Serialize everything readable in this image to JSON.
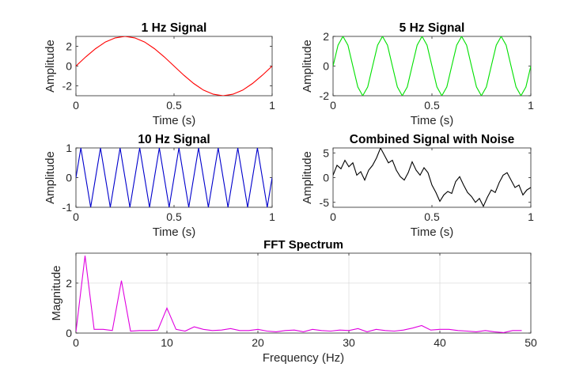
{
  "chart_data": [
    {
      "id": "p1",
      "type": "line",
      "title": "1 Hz Signal",
      "xlabel": "Time (s)",
      "ylabel": "Amplitude",
      "xlim": [
        0,
        1
      ],
      "ylim": [
        -3,
        3
      ],
      "xticks": [
        0,
        0.5,
        1
      ],
      "xtick_labels": [
        "0",
        "0.5",
        "1"
      ],
      "yticks": [
        -2,
        0,
        2
      ],
      "ytick_labels": [
        "-2",
        "0",
        "2"
      ],
      "grid": false,
      "color": "#ff0000",
      "x": [
        0,
        0.05,
        0.1,
        0.15,
        0.2,
        0.25,
        0.3,
        0.35,
        0.4,
        0.45,
        0.5,
        0.55,
        0.6,
        0.65,
        0.7,
        0.75,
        0.8,
        0.85,
        0.9,
        0.95,
        1
      ],
      "y": [
        0,
        0.93,
        1.76,
        2.43,
        2.85,
        3.0,
        2.85,
        2.43,
        1.76,
        0.93,
        0,
        -0.93,
        -1.76,
        -2.43,
        -2.85,
        -3.0,
        -2.85,
        -2.43,
        -1.76,
        -0.93,
        0
      ]
    },
    {
      "id": "p2",
      "type": "line",
      "title": "5 Hz Signal",
      "xlabel": "Time (s)",
      "ylabel": "Amplitude",
      "xlim": [
        0,
        1
      ],
      "ylim": [
        -2,
        2
      ],
      "xticks": [
        0,
        0.5,
        1
      ],
      "xtick_labels": [
        "0",
        "0.5",
        "1"
      ],
      "yticks": [
        -2,
        0,
        2
      ],
      "ytick_labels": [
        "-2",
        "0",
        "2"
      ],
      "grid": false,
      "color": "#00e000",
      "x": [
        0,
        0.025,
        0.05,
        0.075,
        0.1,
        0.125,
        0.15,
        0.175,
        0.2,
        0.225,
        0.25,
        0.275,
        0.3,
        0.325,
        0.35,
        0.375,
        0.4,
        0.425,
        0.45,
        0.475,
        0.5,
        0.525,
        0.55,
        0.575,
        0.6,
        0.625,
        0.65,
        0.675,
        0.7,
        0.725,
        0.75,
        0.775,
        0.8,
        0.825,
        0.85,
        0.875,
        0.9,
        0.925,
        0.95,
        0.975,
        1
      ],
      "y": [
        0,
        1.41,
        2,
        1.41,
        0,
        -1.41,
        -2,
        -1.41,
        0,
        1.41,
        2,
        1.41,
        0,
        -1.41,
        -2,
        -1.41,
        0,
        1.41,
        2,
        1.41,
        0,
        -1.41,
        -2,
        -1.41,
        0,
        1.41,
        2,
        1.41,
        0,
        -1.41,
        -2,
        -1.41,
        0,
        1.41,
        2,
        1.41,
        0,
        -1.41,
        -2,
        -1.41,
        0
      ]
    },
    {
      "id": "p3",
      "type": "line",
      "title": "10 Hz Signal",
      "xlabel": "Time (s)",
      "ylabel": "Amplitude",
      "xlim": [
        0,
        1
      ],
      "ylim": [
        -1,
        1
      ],
      "xticks": [
        0,
        0.5,
        1
      ],
      "xtick_labels": [
        "0",
        "0.5",
        "1"
      ],
      "yticks": [
        -1,
        0,
        1
      ],
      "ytick_labels": [
        "-1",
        "0",
        "1"
      ],
      "grid": false,
      "color": "#0000cc",
      "x": [
        0,
        0.025,
        0.05,
        0.075,
        0.1,
        0.125,
        0.15,
        0.175,
        0.2,
        0.225,
        0.25,
        0.275,
        0.3,
        0.325,
        0.35,
        0.375,
        0.4,
        0.425,
        0.45,
        0.475,
        0.5,
        0.525,
        0.55,
        0.575,
        0.6,
        0.625,
        0.65,
        0.675,
        0.7,
        0.725,
        0.75,
        0.775,
        0.8,
        0.825,
        0.85,
        0.875,
        0.9,
        0.925,
        0.95,
        0.975,
        1
      ],
      "y": [
        0,
        1,
        0,
        -1,
        0,
        1,
        0,
        -1,
        0,
        1,
        0,
        -1,
        0,
        1,
        0,
        -1,
        0,
        1,
        0,
        -1,
        0,
        1,
        0,
        -1,
        0,
        1,
        0,
        -1,
        0,
        1,
        0,
        -1,
        0,
        1,
        0,
        -1,
        0,
        1,
        0,
        -1,
        0
      ]
    },
    {
      "id": "p4",
      "type": "line",
      "title": "Combined Signal with Noise",
      "xlabel": "Time (s)",
      "ylabel": "Amplitude",
      "xlim": [
        0,
        1
      ],
      "ylim": [
        -6,
        6
      ],
      "xticks": [
        0,
        0.5,
        1
      ],
      "xtick_labels": [
        "0",
        "0.5",
        "1"
      ],
      "yticks": [
        -5,
        0,
        5
      ],
      "ytick_labels": [
        "-5",
        "0",
        "5"
      ],
      "grid": false,
      "color": "#000000",
      "x": [
        0,
        0.02,
        0.04,
        0.06,
        0.08,
        0.1,
        0.12,
        0.14,
        0.16,
        0.18,
        0.2,
        0.22,
        0.24,
        0.26,
        0.28,
        0.3,
        0.32,
        0.34,
        0.36,
        0.38,
        0.4,
        0.42,
        0.44,
        0.46,
        0.48,
        0.5,
        0.52,
        0.54,
        0.56,
        0.58,
        0.6,
        0.62,
        0.64,
        0.66,
        0.68,
        0.7,
        0.72,
        0.74,
        0.76,
        0.78,
        0.8,
        0.82,
        0.84,
        0.86,
        0.88,
        0.9,
        0.92,
        0.94,
        0.96,
        0.98,
        1
      ],
      "y": [
        0.5,
        2.5,
        1.8,
        3.5,
        2.2,
        3.0,
        0.5,
        1.2,
        -0.5,
        1.5,
        2.5,
        4.0,
        6.0,
        4.5,
        3.0,
        3.5,
        1.5,
        0.2,
        -0.5,
        1.0,
        3.2,
        1.5,
        0.5,
        2.0,
        1.0,
        -1.5,
        -3.0,
        -4.8,
        -3.5,
        -2.8,
        -3.2,
        -0.8,
        0.2,
        -1.5,
        -3.0,
        -3.8,
        -5.0,
        -4.2,
        -5.8,
        -4.0,
        -2.5,
        -3.0,
        -1.0,
        0.5,
        1.0,
        -0.5,
        -2.0,
        -1.5,
        -3.5,
        -2.5,
        -2.0
      ]
    },
    {
      "id": "p5",
      "type": "line",
      "title": "FFT Spectrum",
      "xlabel": "Frequency (Hz)",
      "ylabel": "Magnitude",
      "xlim": [
        0,
        50
      ],
      "ylim": [
        0,
        3.2
      ],
      "xticks": [
        0,
        10,
        20,
        30,
        40,
        50
      ],
      "xtick_labels": [
        "0",
        "10",
        "20",
        "30",
        "40",
        "50"
      ],
      "yticks": [
        0,
        2
      ],
      "ytick_labels": [
        "0",
        "2"
      ],
      "grid": true,
      "color": "#e000e0",
      "x": [
        0,
        1,
        2,
        3,
        4,
        5,
        6,
        7,
        8,
        9,
        10,
        11,
        12,
        13,
        14,
        15,
        16,
        17,
        18,
        19,
        20,
        21,
        22,
        23,
        24,
        25,
        26,
        27,
        28,
        29,
        30,
        31,
        32,
        33,
        34,
        35,
        36,
        37,
        38,
        39,
        40,
        41,
        42,
        43,
        44,
        45,
        46,
        47,
        48,
        49
      ],
      "y": [
        0.05,
        3.1,
        0.15,
        0.15,
        0.1,
        2.1,
        0.08,
        0.1,
        0.1,
        0.12,
        1.0,
        0.15,
        0.08,
        0.25,
        0.15,
        0.1,
        0.12,
        0.18,
        0.1,
        0.1,
        0.15,
        0.08,
        0.05,
        0.1,
        0.12,
        0.05,
        0.15,
        0.1,
        0.08,
        0.12,
        0.1,
        0.18,
        0.05,
        0.15,
        0.1,
        0.08,
        0.12,
        0.2,
        0.3,
        0.12,
        0.15,
        0.15,
        0.1,
        0.08,
        0.05,
        0.1,
        0.05,
        0.02,
        0.1,
        0.1
      ]
    }
  ]
}
